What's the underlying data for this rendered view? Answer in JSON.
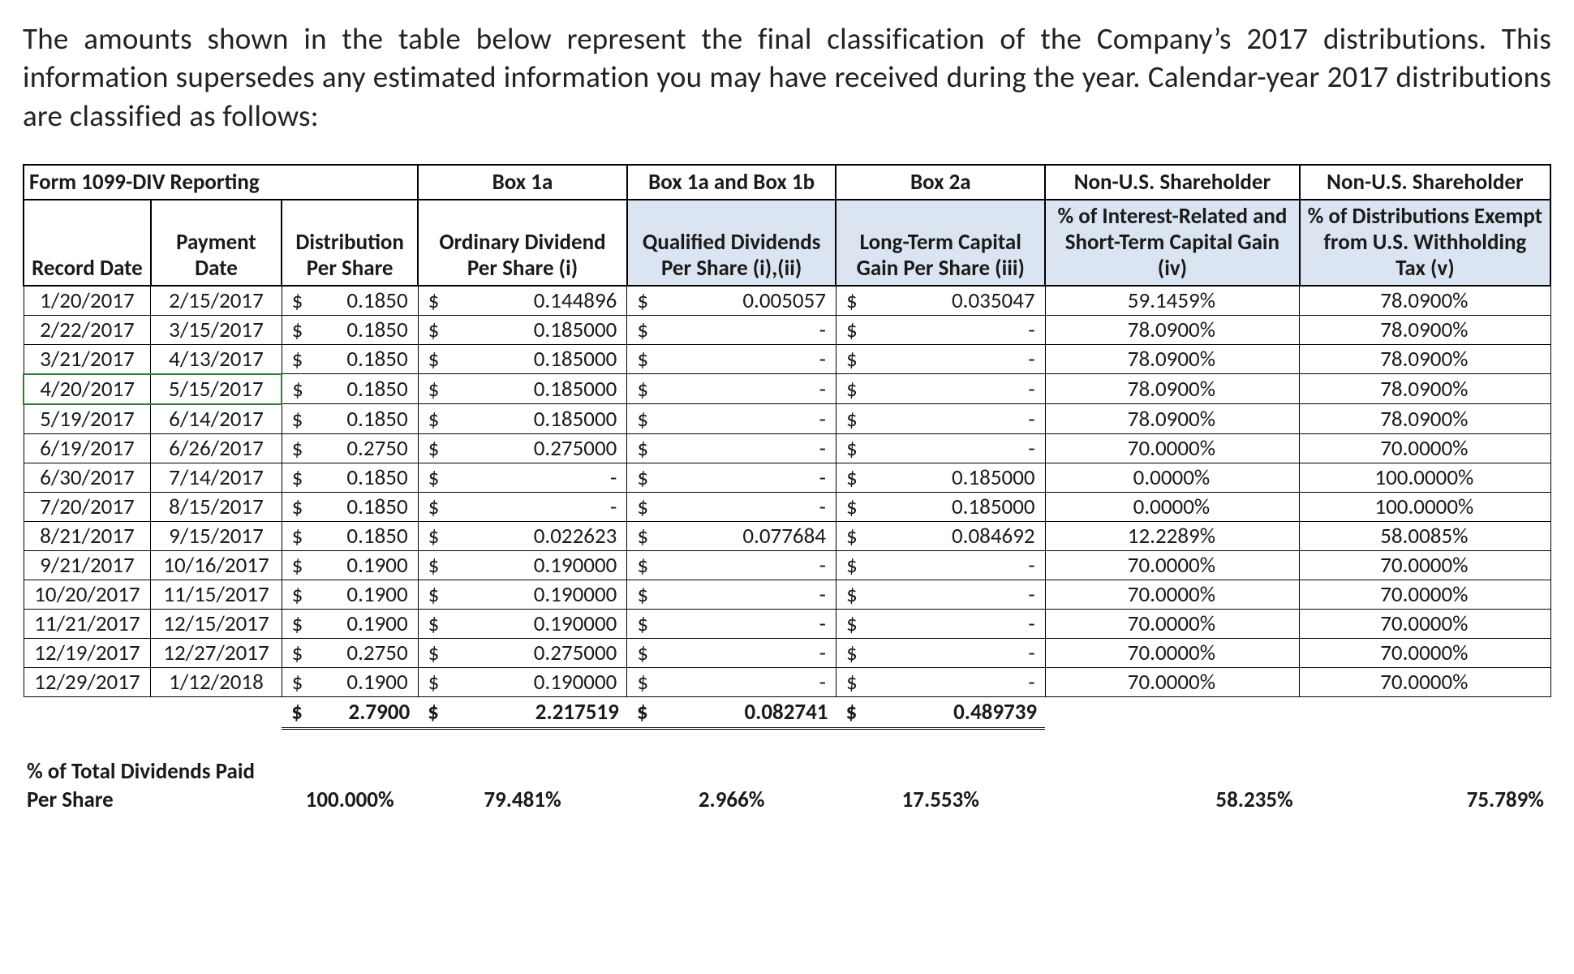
{
  "intro_text": "The amounts shown in the table below represent the final classification of the Company’s 2017 distributions. This information supersedes any estimated information you may have received during the year. Calendar-year 2017 distributions are classified as follows:",
  "colors": {
    "text": "#1a1a1a",
    "border": "#000000",
    "shaded_header_bg": "#dbe5f1",
    "highlight_border": "#2e7d32",
    "background": "#ffffff"
  },
  "table": {
    "type": "table",
    "font_size_pt": 20,
    "header_top": [
      "Form 1099-DIV Reporting",
      "Box 1a",
      "Box 1a and Box 1b",
      "Box 2a",
      "Non-U.S. Shareholder",
      "Non-U.S. Shareholder"
    ],
    "header_cols": [
      "Record Date",
      "Payment Date",
      "Distribution Per Share",
      "Ordinary Dividend Per Share (i)",
      "Qualified Dividends Per Share (i),(ii)",
      "Long-Term Capital Gain Per Share (iii)",
      "% of Interest-Related and Short-Term Capital Gain (iv)",
      "% of Distributions Exempt from U.S. Withholding Tax (v)"
    ],
    "shaded_header_indices": [
      4,
      5,
      6,
      7
    ],
    "highlighted_row_index": 3,
    "rows": [
      {
        "record_date": "1/20/2017",
        "payment_date": "2/15/2017",
        "dist": "0.1850",
        "box1a": "0.144896",
        "box1a1b": "0.005057",
        "box2a": "0.035047",
        "pct_interest": "59.1459%",
        "pct_exempt": "78.0900%"
      },
      {
        "record_date": "2/22/2017",
        "payment_date": "3/15/2017",
        "dist": "0.1850",
        "box1a": "0.185000",
        "box1a1b": "-",
        "box2a": "-",
        "pct_interest": "78.0900%",
        "pct_exempt": "78.0900%"
      },
      {
        "record_date": "3/21/2017",
        "payment_date": "4/13/2017",
        "dist": "0.1850",
        "box1a": "0.185000",
        "box1a1b": "-",
        "box2a": "-",
        "pct_interest": "78.0900%",
        "pct_exempt": "78.0900%"
      },
      {
        "record_date": "4/20/2017",
        "payment_date": "5/15/2017",
        "dist": "0.1850",
        "box1a": "0.185000",
        "box1a1b": "-",
        "box2a": "-",
        "pct_interest": "78.0900%",
        "pct_exempt": "78.0900%"
      },
      {
        "record_date": "5/19/2017",
        "payment_date": "6/14/2017",
        "dist": "0.1850",
        "box1a": "0.185000",
        "box1a1b": "-",
        "box2a": "-",
        "pct_interest": "78.0900%",
        "pct_exempt": "78.0900%"
      },
      {
        "record_date": "6/19/2017",
        "payment_date": "6/26/2017",
        "dist": "0.2750",
        "box1a": "0.275000",
        "box1a1b": "-",
        "box2a": "-",
        "pct_interest": "70.0000%",
        "pct_exempt": "70.0000%"
      },
      {
        "record_date": "6/30/2017",
        "payment_date": "7/14/2017",
        "dist": "0.1850",
        "box1a": "-",
        "box1a1b": "-",
        "box2a": "0.185000",
        "pct_interest": "0.0000%",
        "pct_exempt": "100.0000%"
      },
      {
        "record_date": "7/20/2017",
        "payment_date": "8/15/2017",
        "dist": "0.1850",
        "box1a": "-",
        "box1a1b": "-",
        "box2a": "0.185000",
        "pct_interest": "0.0000%",
        "pct_exempt": "100.0000%"
      },
      {
        "record_date": "8/21/2017",
        "payment_date": "9/15/2017",
        "dist": "0.1850",
        "box1a": "0.022623",
        "box1a1b": "0.077684",
        "box2a": "0.084692",
        "pct_interest": "12.2289%",
        "pct_exempt": "58.0085%"
      },
      {
        "record_date": "9/21/2017",
        "payment_date": "10/16/2017",
        "dist": "0.1900",
        "box1a": "0.190000",
        "box1a1b": "-",
        "box2a": "-",
        "pct_interest": "70.0000%",
        "pct_exempt": "70.0000%"
      },
      {
        "record_date": "10/20/2017",
        "payment_date": "11/15/2017",
        "dist": "0.1900",
        "box1a": "0.190000",
        "box1a1b": "-",
        "box2a": "-",
        "pct_interest": "70.0000%",
        "pct_exempt": "70.0000%"
      },
      {
        "record_date": "11/21/2017",
        "payment_date": "12/15/2017",
        "dist": "0.1900",
        "box1a": "0.190000",
        "box1a1b": "-",
        "box2a": "-",
        "pct_interest": "70.0000%",
        "pct_exempt": "70.0000%"
      },
      {
        "record_date": "12/19/2017",
        "payment_date": "12/27/2017",
        "dist": "0.2750",
        "box1a": "0.275000",
        "box1a1b": "-",
        "box2a": "-",
        "pct_interest": "70.0000%",
        "pct_exempt": "70.0000%"
      },
      {
        "record_date": "12/29/2017",
        "payment_date": "1/12/2018",
        "dist": "0.1900",
        "box1a": "0.190000",
        "box1a1b": "-",
        "box2a": "-",
        "pct_interest": "70.0000%",
        "pct_exempt": "70.0000%"
      }
    ],
    "totals": {
      "dist": "2.7900",
      "box1a": "2.217519",
      "box1a1b": "0.082741",
      "box2a": "0.489739"
    },
    "footer_label_line1": "% of Total Dividends Paid",
    "footer_label_line2": "Per Share",
    "footer_percents": {
      "dist": "100.000%",
      "box1a": "79.481%",
      "box1a1b": "2.966%",
      "box2a": "17.553%",
      "pct_interest": "58.235%",
      "pct_exempt": "75.789%"
    }
  }
}
